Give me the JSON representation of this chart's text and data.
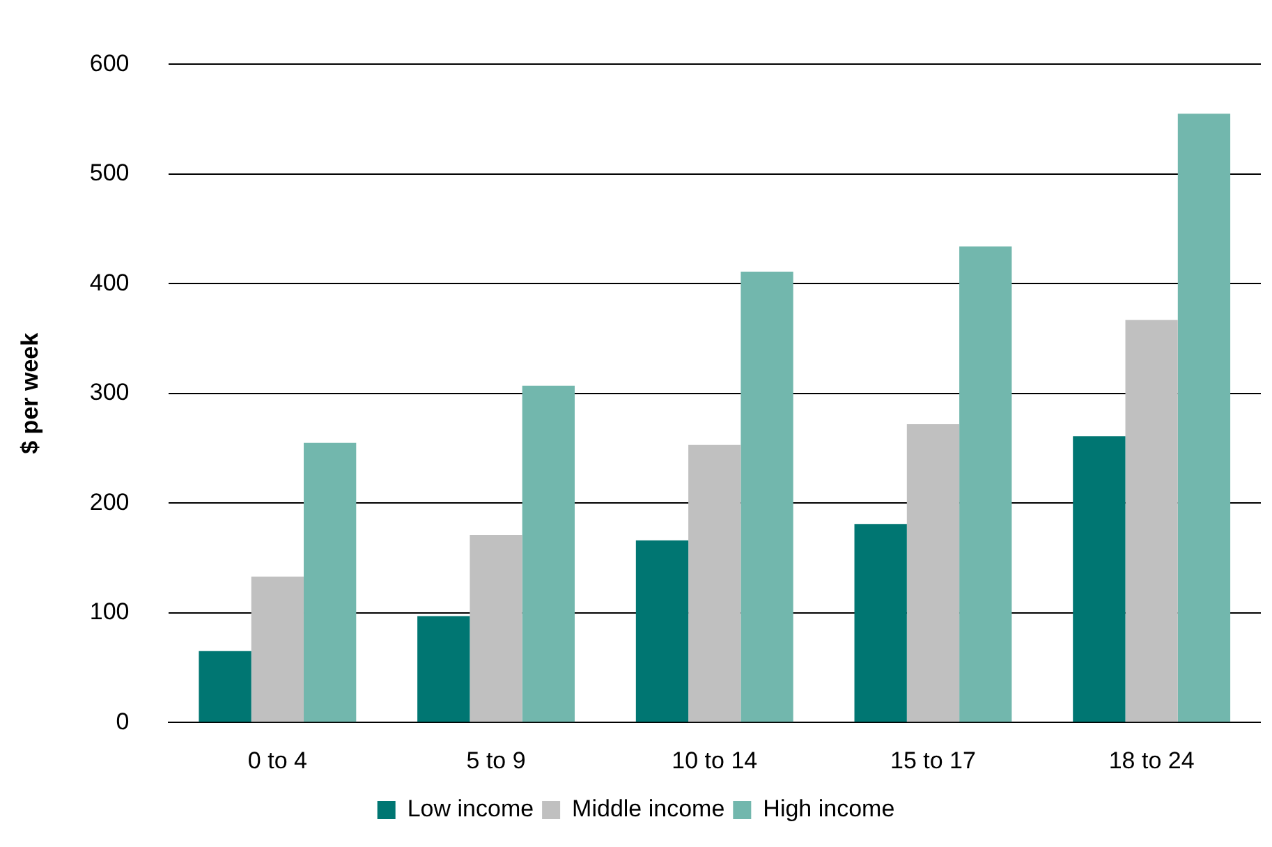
{
  "chart_data": {
    "type": "bar",
    "ylabel": "$ per week",
    "categories": [
      "0 to 4",
      "5 to 9",
      "10 to 14",
      "15 to 17",
      "18 to 24"
    ],
    "series": [
      {
        "name": "Low income",
        "color": "#007672",
        "values": [
          65,
          97,
          166,
          181,
          261
        ]
      },
      {
        "name": "Middle income",
        "color": "#c0c0c0",
        "values": [
          133,
          171,
          253,
          272,
          367
        ]
      },
      {
        "name": "High income",
        "color": "#72b7ad",
        "values": [
          255,
          307,
          411,
          434,
          555
        ]
      }
    ],
    "ylim": [
      0,
      600
    ],
    "yticks": [
      0,
      100,
      200,
      300,
      400,
      500,
      600
    ],
    "grid": "y",
    "legend": "bottom"
  }
}
